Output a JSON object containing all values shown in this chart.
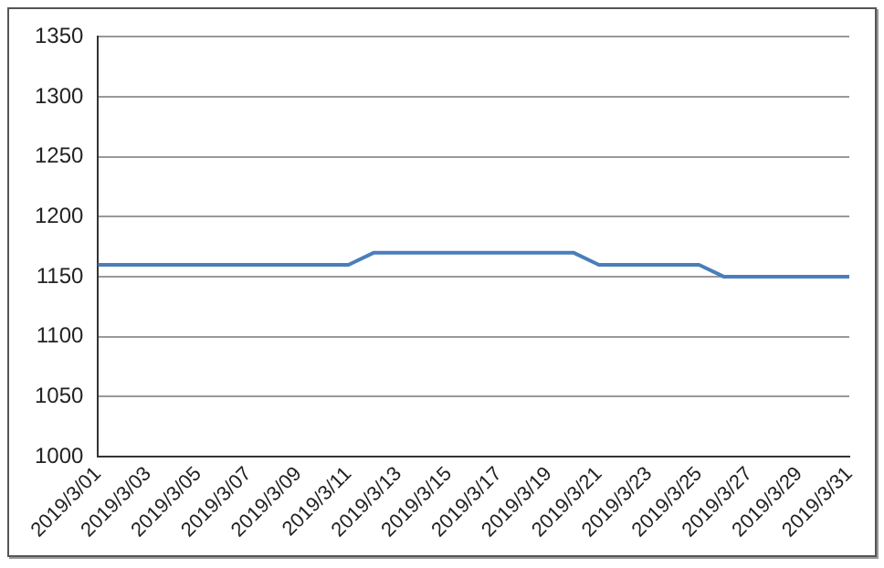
{
  "chart_data": {
    "type": "line",
    "categories": [
      "2019/3/01",
      null,
      "2019/3/03",
      null,
      "2019/3/05",
      null,
      "2019/3/07",
      null,
      "2019/3/09",
      null,
      "2019/3/11",
      null,
      "2019/3/13",
      null,
      "2019/3/15",
      null,
      "2019/3/17",
      null,
      "2019/3/19",
      null,
      "2019/3/21",
      null,
      "2019/3/23",
      null,
      "2019/3/25",
      null,
      "2019/3/27",
      null,
      "2019/3/29",
      null,
      "2019/3/31"
    ],
    "series": [
      {
        "color": "#4a7ebb",
        "values": [
          1160,
          1160,
          1160,
          1160,
          1160,
          1160,
          1160,
          1160,
          1160,
          1160,
          1160,
          1170,
          1170,
          1170,
          1170,
          1170,
          1170,
          1170,
          1170,
          1170,
          1160,
          1160,
          1160,
          1160,
          1160,
          1150,
          1150,
          1150,
          1150,
          1150,
          1150
        ]
      }
    ],
    "ylim": [
      1000,
      1350
    ],
    "yticks": [
      1000,
      1050,
      1100,
      1150,
      1200,
      1250,
      1300,
      1350
    ],
    "grid": "y",
    "legend": false,
    "marker": "none",
    "line_style": "solid"
  }
}
